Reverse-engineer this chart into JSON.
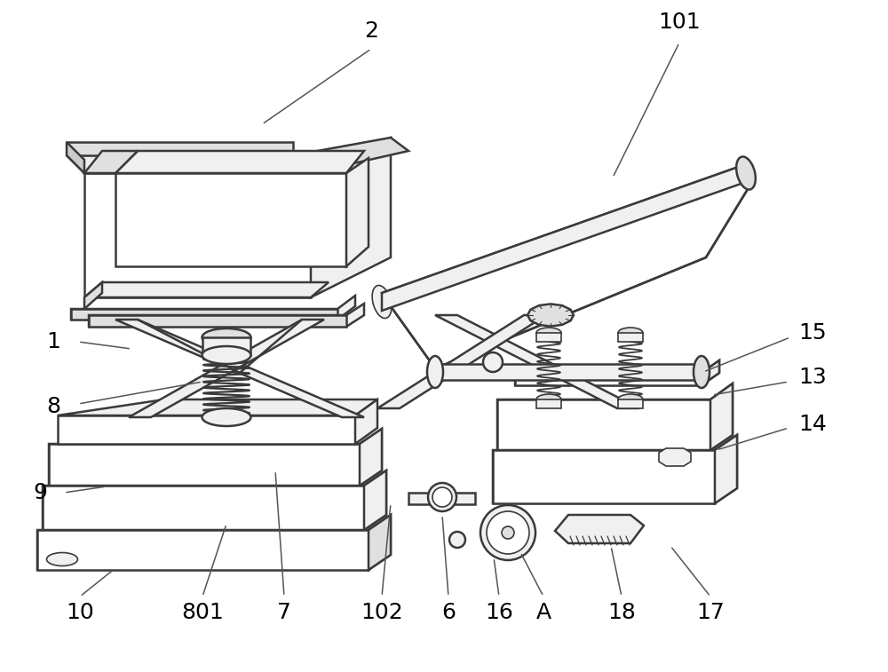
{
  "bg": "#ffffff",
  "lc": "#3a3a3a",
  "lw": 1.8,
  "lw_thin": 1.2,
  "lw_thick": 2.2,
  "fc_white": "#ffffff",
  "fc_light": "#f0f0f0",
  "fc_med": "#e0e0e0",
  "fc_dark": "#cccccc",
  "label_fs": 18,
  "figsize": [
    10.0,
    7.57
  ],
  "dpi": 100
}
